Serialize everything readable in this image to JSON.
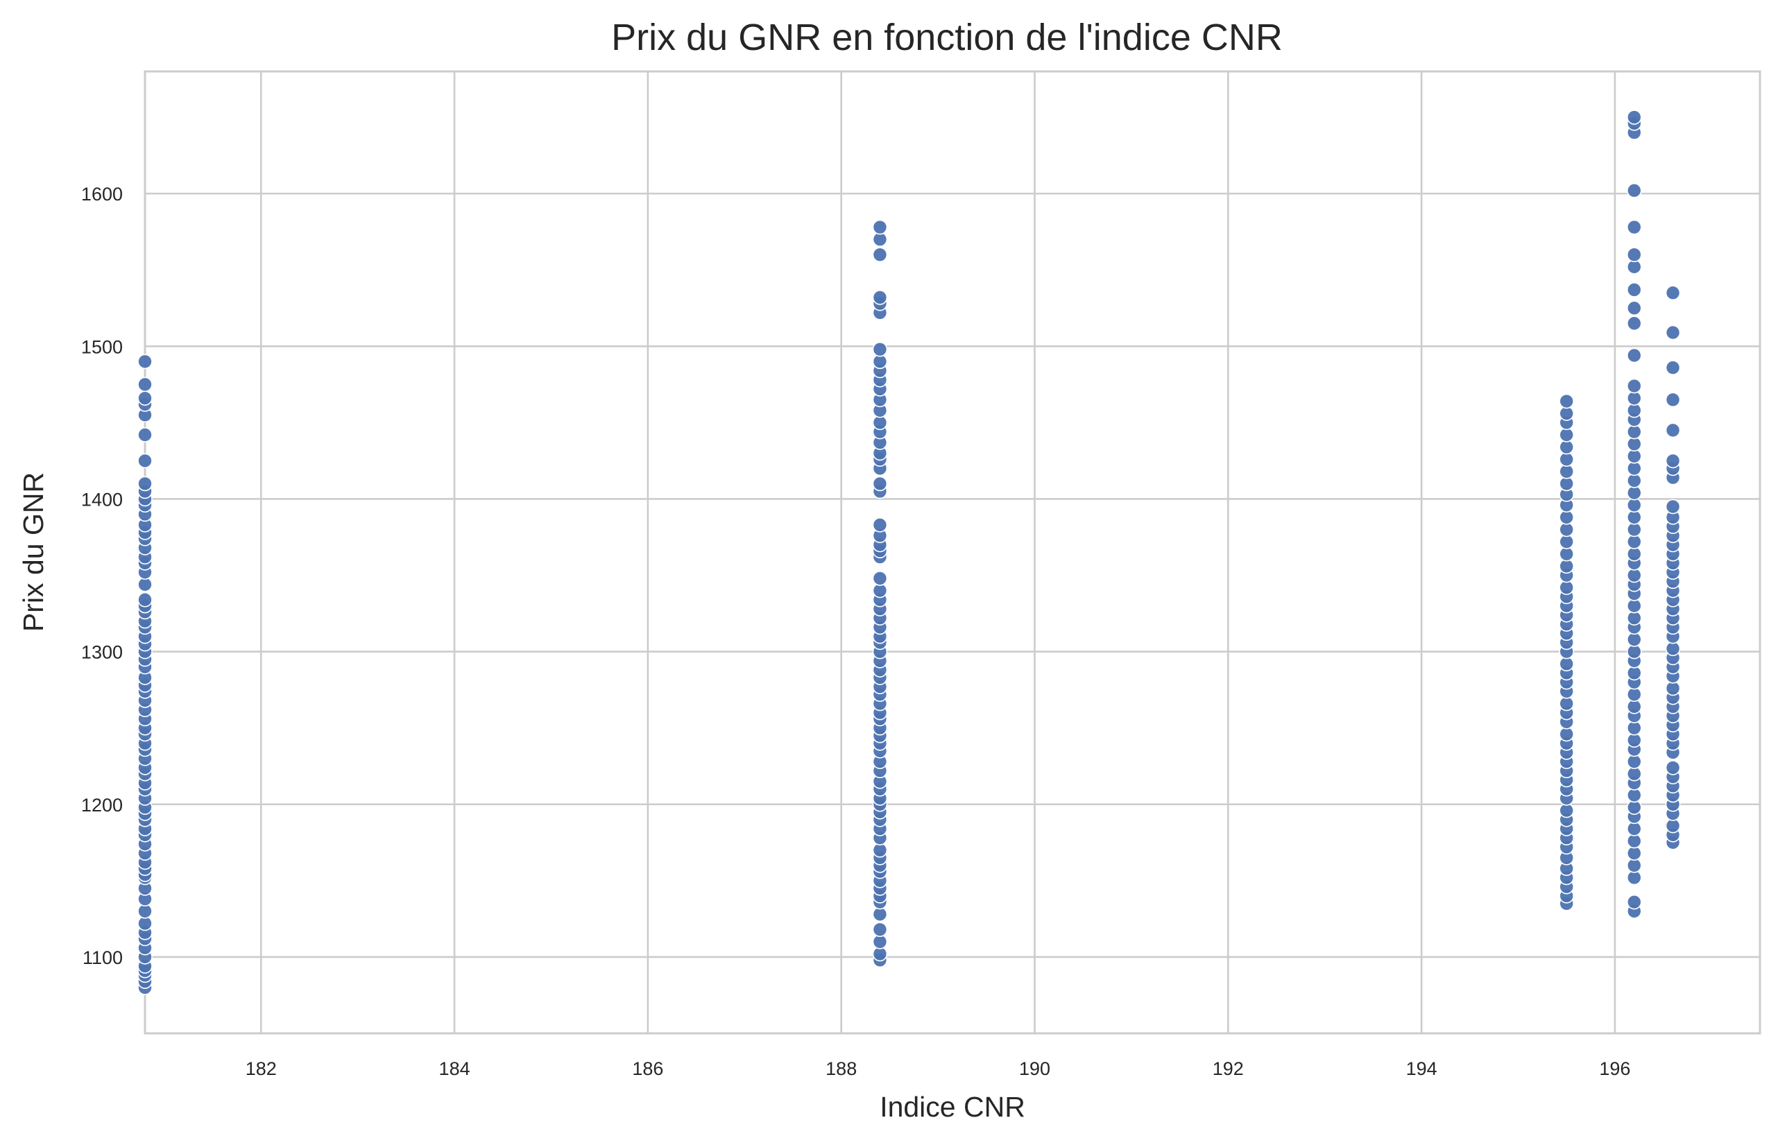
{
  "chart_data": {
    "type": "scatter",
    "title": "Prix du GNR en fonction de l'indice CNR",
    "xlabel": "Indice CNR",
    "ylabel": "Prix du GNR",
    "xlim": [
      180.8,
      197.5
    ],
    "ylim": [
      1050,
      1680
    ],
    "x_ticks": [
      182,
      184,
      186,
      188,
      190,
      192,
      194,
      196
    ],
    "y_ticks": [
      1100,
      1200,
      1300,
      1400,
      1500,
      1600
    ],
    "grid": true,
    "legend": "none",
    "colors": {
      "marker": "#4c72b0",
      "marker_edge": "#ffffff",
      "grid": "#cccccc",
      "axes_edge": "#cccccc",
      "text": "#262626"
    },
    "series": [
      {
        "x": 180.8,
        "y": [
          1080,
          1084,
          1088,
          1091,
          1094,
          1100,
          1106,
          1112,
          1116,
          1122,
          1130,
          1138,
          1145,
          1152,
          1154,
          1158,
          1162,
          1168,
          1174,
          1180,
          1184,
          1190,
          1194,
          1198,
          1204,
          1210,
          1214,
          1220,
          1224,
          1230,
          1236,
          1240,
          1246,
          1250,
          1256,
          1262,
          1268,
          1274,
          1278,
          1283,
          1290,
          1295,
          1300,
          1305,
          1310,
          1316,
          1320,
          1326,
          1330,
          1334,
          1344,
          1352,
          1358,
          1362,
          1368,
          1374,
          1378,
          1383,
          1390,
          1396,
          1400,
          1405,
          1410,
          1425,
          1442,
          1455,
          1462,
          1466,
          1475,
          1490
        ]
      },
      {
        "x": 188.4,
        "y": [
          1098,
          1102,
          1110,
          1118,
          1128,
          1136,
          1140,
          1145,
          1150,
          1156,
          1160,
          1165,
          1170,
          1178,
          1184,
          1190,
          1195,
          1200,
          1204,
          1210,
          1215,
          1222,
          1228,
          1235,
          1240,
          1245,
          1250,
          1256,
          1260,
          1266,
          1272,
          1277,
          1283,
          1288,
          1294,
          1300,
          1306,
          1310,
          1316,
          1322,
          1328,
          1334,
          1340,
          1348,
          1362,
          1366,
          1370,
          1376,
          1383,
          1405,
          1410,
          1420,
          1426,
          1430,
          1437,
          1444,
          1450,
          1458,
          1465,
          1472,
          1478,
          1484,
          1490,
          1498,
          1522,
          1528,
          1532,
          1560,
          1570,
          1578
        ]
      },
      {
        "x": 195.5,
        "y": [
          1135,
          1140,
          1146,
          1152,
          1158,
          1165,
          1172,
          1178,
          1184,
          1190,
          1196,
          1204,
          1210,
          1216,
          1222,
          1228,
          1234,
          1240,
          1246,
          1254,
          1260,
          1266,
          1274,
          1280,
          1286,
          1292,
          1300,
          1306,
          1312,
          1318,
          1324,
          1330,
          1336,
          1342,
          1350,
          1356,
          1364,
          1372,
          1380,
          1388,
          1396,
          1403,
          1410,
          1418,
          1426,
          1434,
          1442,
          1450,
          1456,
          1464
        ]
      },
      {
        "x": 196.2,
        "y": [
          1130,
          1136,
          1152,
          1160,
          1168,
          1176,
          1184,
          1192,
          1198,
          1206,
          1214,
          1220,
          1228,
          1236,
          1242,
          1250,
          1258,
          1264,
          1272,
          1280,
          1286,
          1294,
          1300,
          1308,
          1316,
          1322,
          1330,
          1338,
          1344,
          1350,
          1358,
          1364,
          1372,
          1380,
          1388,
          1396,
          1404,
          1412,
          1420,
          1428,
          1436,
          1444,
          1452,
          1458,
          1466,
          1474,
          1494,
          1515,
          1525,
          1537,
          1552,
          1560,
          1578,
          1602,
          1640,
          1646,
          1650
        ]
      },
      {
        "x": 196.6,
        "y": [
          1175,
          1180,
          1186,
          1194,
          1200,
          1206,
          1212,
          1218,
          1224,
          1234,
          1240,
          1246,
          1252,
          1258,
          1264,
          1270,
          1276,
          1284,
          1290,
          1296,
          1302,
          1310,
          1316,
          1322,
          1328,
          1334,
          1340,
          1346,
          1352,
          1358,
          1364,
          1370,
          1376,
          1382,
          1388,
          1395,
          1414,
          1420,
          1425,
          1445,
          1465,
          1486,
          1509,
          1535
        ]
      }
    ]
  }
}
